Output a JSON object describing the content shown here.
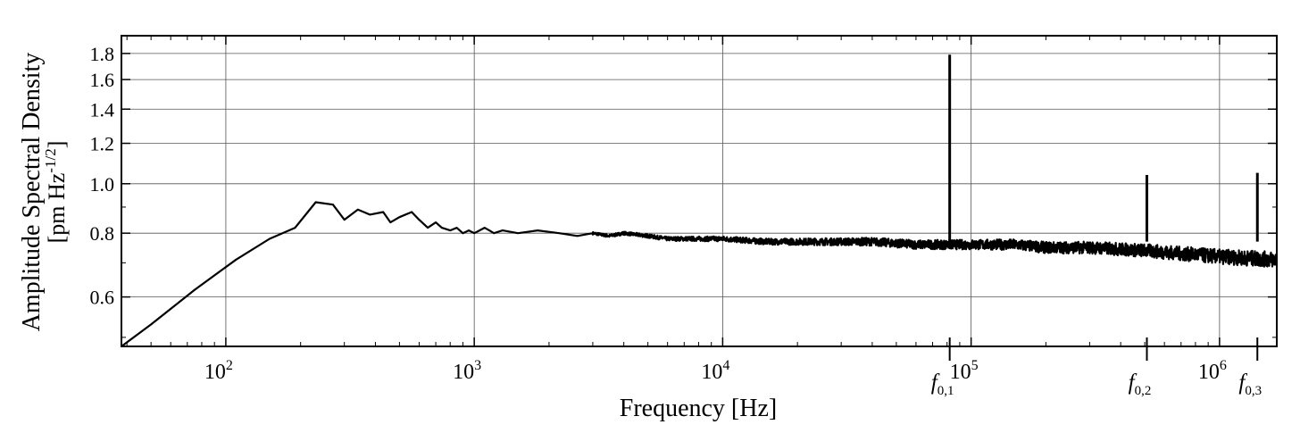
{
  "chart_data": {
    "type": "line",
    "title": "",
    "xlabel": "Frequency [Hz]",
    "ylabel": "Amplitude Spectral Density",
    "ylabel_unit": "[pm Hz-1/2]",
    "x_scale": "log",
    "y_scale": "log",
    "xlim": [
      38,
      1700000
    ],
    "ylim": [
      0.48,
      1.95
    ],
    "grid": true,
    "x_ticks": [
      {
        "value": 100,
        "label": "10",
        "exp": "2"
      },
      {
        "value": 1000,
        "label": "10",
        "exp": "3"
      },
      {
        "value": 10000,
        "label": "10",
        "exp": "4"
      },
      {
        "value": 100000,
        "label": "10",
        "exp": "5"
      },
      {
        "value": 1000000,
        "label": "10",
        "exp": "6"
      }
    ],
    "y_ticks": [
      {
        "value": 0.6,
        "label": "0.6"
      },
      {
        "value": 0.8,
        "label": "0.8"
      },
      {
        "value": 1.0,
        "label": "1.0"
      },
      {
        "value": 1.2,
        "label": "1.2"
      },
      {
        "value": 1.4,
        "label": "1.4"
      },
      {
        "value": 1.6,
        "label": "1.6"
      },
      {
        "value": 1.8,
        "label": "1.8"
      }
    ],
    "annotations": [
      {
        "x": 82000,
        "label": "f",
        "sub": "0,1"
      },
      {
        "x": 510000,
        "label": "f",
        "sub": "0,2"
      },
      {
        "x": 1420000,
        "label": "f",
        "sub": "0,3"
      }
    ],
    "series": [
      {
        "color": "#000000",
        "x": [
          38,
          50,
          75,
          110,
          150,
          190,
          230,
          270,
          300,
          340,
          380,
          430,
          460,
          500,
          560,
          600,
          650,
          700,
          740,
          800,
          850,
          900,
          950,
          1000,
          1050,
          1100,
          1150,
          1200,
          1300,
          1500,
          1800,
          2200,
          2600,
          3000,
          3500,
          4000,
          5000,
          6000,
          8000,
          10000,
          15000,
          20000,
          30000,
          40000,
          60000,
          80000,
          100000,
          150000,
          200000,
          300000,
          500000,
          700000,
          1000000,
          1700000
        ],
        "values": [
          0.48,
          0.53,
          0.62,
          0.71,
          0.78,
          0.82,
          0.92,
          0.91,
          0.85,
          0.89,
          0.87,
          0.88,
          0.84,
          0.86,
          0.88,
          0.85,
          0.82,
          0.84,
          0.82,
          0.81,
          0.82,
          0.8,
          0.81,
          0.8,
          0.81,
          0.82,
          0.81,
          0.8,
          0.81,
          0.8,
          0.81,
          0.8,
          0.79,
          0.8,
          0.79,
          0.8,
          0.79,
          0.78,
          0.78,
          0.78,
          0.77,
          0.77,
          0.77,
          0.77,
          0.76,
          0.76,
          0.76,
          0.76,
          0.75,
          0.75,
          0.74,
          0.73,
          0.72,
          0.71
        ]
      }
    ],
    "peaks": [
      {
        "x": 82000,
        "value": 1.79
      },
      {
        "x": 510000,
        "value": 1.04
      },
      {
        "x": 1420000,
        "value": 1.05
      }
    ]
  }
}
